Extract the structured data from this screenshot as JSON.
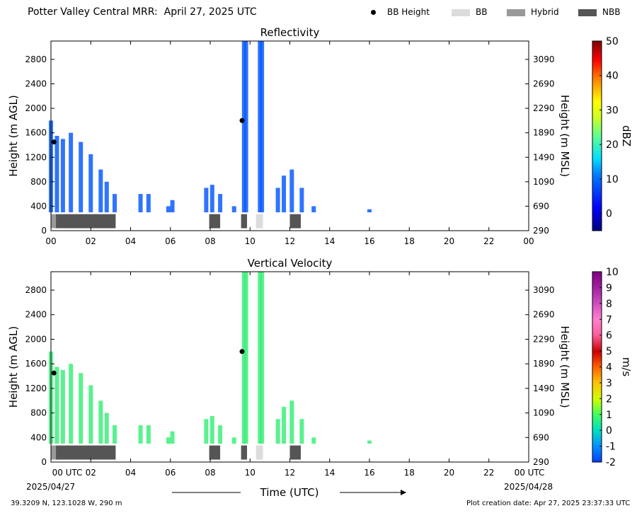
{
  "header": {
    "title": "Potter Valley Central MRR:  April 27, 2025 UTC"
  },
  "legend": [
    {
      "label": "BB Height",
      "marker": "dot",
      "color": "#000000"
    },
    {
      "label": "BB",
      "marker": "box",
      "color": "#dcdcdc"
    },
    {
      "label": "Hybrid",
      "marker": "box",
      "color": "#999999"
    },
    {
      "label": "NBB",
      "marker": "box",
      "color": "#555555"
    }
  ],
  "footer": {
    "coords": "39.3209 N, 123.1028 W, 290 m",
    "created": "Plot creation date: Apr 27, 2025 23:37:33 UTC"
  },
  "chart_data": [
    {
      "type": "heatmap",
      "title": "Reflectivity",
      "ylabel": "Height (m AGL)",
      "ylabel_right": "Height (m MSL)",
      "colorbar_label": "dBZ",
      "colorbar_ticks": [
        "0",
        "10",
        "20",
        "30",
        "40",
        "50"
      ],
      "colorbar_range": [
        -5,
        50
      ],
      "x_ticks": [
        "00",
        "02",
        "04",
        "06",
        "08",
        "10",
        "12",
        "14",
        "16",
        "18",
        "20",
        "22",
        "00"
      ],
      "y_ticks": [
        "0",
        "400",
        "800",
        "1200",
        "1600",
        "2000",
        "2400",
        "2800"
      ],
      "y_ticks_right": [
        "290",
        "690",
        "1090",
        "1490",
        "1890",
        "2290",
        "2690",
        "3090"
      ],
      "xlim": [
        0,
        24
      ],
      "ylim": [
        0,
        3100
      ],
      "bb_height": [
        [
          0.15,
          1450
        ],
        [
          9.6,
          1800
        ]
      ],
      "echo_tops": [
        [
          0,
          1800
        ],
        [
          0.3,
          1550
        ],
        [
          0.6,
          1500
        ],
        [
          1.0,
          1600
        ],
        [
          1.5,
          1450
        ],
        [
          2.0,
          1250
        ],
        [
          2.5,
          1000
        ],
        [
          2.8,
          800
        ],
        [
          3.2,
          600
        ],
        [
          4.5,
          600
        ],
        [
          4.9,
          600
        ],
        [
          5.9,
          400
        ],
        [
          6.1,
          500
        ],
        [
          7.8,
          700
        ],
        [
          8.1,
          750
        ],
        [
          8.5,
          600
        ],
        [
          9.2,
          400
        ],
        [
          9.7,
          3100
        ],
        [
          9.8,
          3100
        ],
        [
          10.5,
          3100
        ],
        [
          10.6,
          3100
        ],
        [
          11.4,
          700
        ],
        [
          11.7,
          900
        ],
        [
          12.1,
          1000
        ],
        [
          12.6,
          700
        ],
        [
          13.2,
          400
        ],
        [
          16.0,
          350
        ]
      ],
      "class_strip": [
        {
          "class": "Hybrid",
          "start": 0.0,
          "end": 0.25
        },
        {
          "class": "NBB",
          "start": 0.25,
          "end": 3.25
        },
        {
          "class": "NBB",
          "start": 7.95,
          "end": 8.5
        },
        {
          "class": "NBB",
          "start": 9.55,
          "end": 9.85
        },
        {
          "class": "BB",
          "start": 10.3,
          "end": 10.65
        },
        {
          "class": "NBB",
          "start": 12.0,
          "end": 12.55
        }
      ]
    },
    {
      "type": "heatmap",
      "title": "Vertical Velocity",
      "ylabel": "Height (m AGL)",
      "ylabel_right": "Height (m MSL)",
      "xlabel": "Time (UTC)",
      "colorbar_label": "m/s",
      "colorbar_ticks": [
        "-2",
        "-1",
        "0",
        "1",
        "2",
        "3",
        "4",
        "5",
        "6",
        "7",
        "8",
        "9",
        "10"
      ],
      "colorbar_range": [
        -2,
        10
      ],
      "x_ticks": [
        "00 UTC",
        "02",
        "04",
        "06",
        "08",
        "10",
        "12",
        "14",
        "16",
        "18",
        "20",
        "22",
        "00 UTC"
      ],
      "x_date_left": "2025/04/27",
      "x_date_right": "2025/04/28",
      "y_ticks": [
        "0",
        "400",
        "800",
        "1200",
        "1600",
        "2000",
        "2400",
        "2800"
      ],
      "y_ticks_right": [
        "290",
        "690",
        "1090",
        "1490",
        "1890",
        "2290",
        "2690",
        "3090"
      ],
      "xlim": [
        0,
        24
      ],
      "ylim": [
        0,
        3100
      ],
      "bb_height": [
        [
          0.15,
          1450
        ],
        [
          9.6,
          1800
        ]
      ],
      "class_strip": [
        {
          "class": "Hybrid",
          "start": 0.0,
          "end": 0.25
        },
        {
          "class": "NBB",
          "start": 0.25,
          "end": 3.25
        },
        {
          "class": "NBB",
          "start": 7.95,
          "end": 8.5
        },
        {
          "class": "NBB",
          "start": 9.55,
          "end": 9.85
        },
        {
          "class": "BB",
          "start": 10.3,
          "end": 10.65
        },
        {
          "class": "NBB",
          "start": 12.0,
          "end": 12.55
        }
      ]
    }
  ]
}
